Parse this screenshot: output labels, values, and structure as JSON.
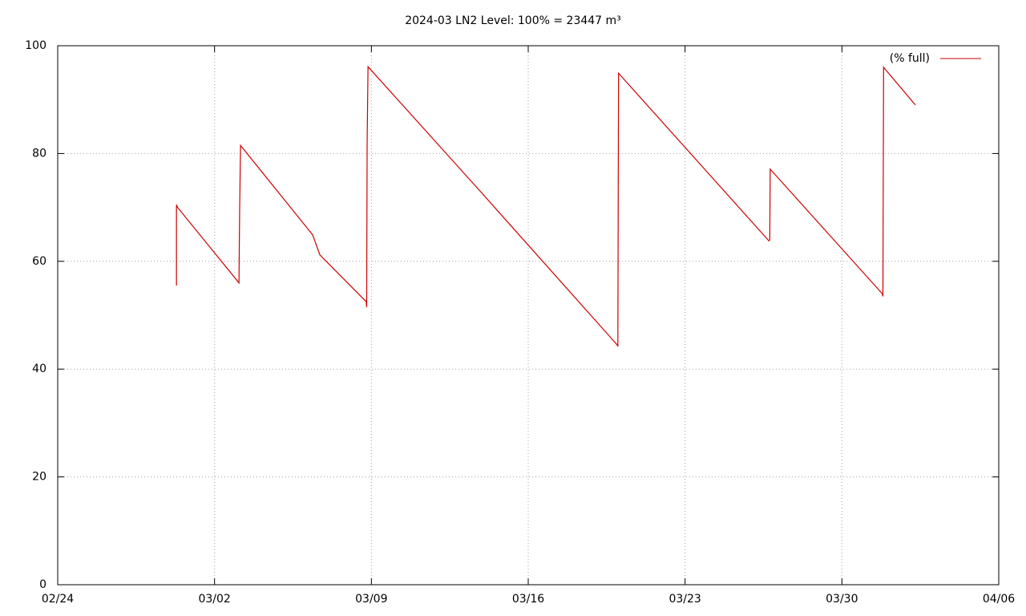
{
  "chart_data": {
    "type": "line",
    "title": "2024-03 LN2 Level: 100% = 23447 m³",
    "x": [
      5.3,
      5.3,
      5.35,
      8.09,
      8.12,
      8.16,
      11.38,
      11.7,
      13.77,
      13.79,
      13.81,
      13.85,
      18.9,
      24.97,
      25.0,
      25.03,
      31.74,
      31.78,
      31.8,
      36.8,
      36.83,
      36.86,
      38.28
    ],
    "series": [
      {
        "name": "(% full)",
        "color": "#cc0000",
        "values": [
          55.5,
          70.5,
          70,
          56,
          69.5,
          81.5,
          64.9,
          61.2,
          52.5,
          51.5,
          82,
          96.1,
          72.8,
          44.5,
          44.2,
          94.9,
          63.8,
          64,
          77.1,
          54,
          53.5,
          96,
          89
        ]
      }
    ],
    "xlim": [
      0,
      42
    ],
    "xticks": [
      {
        "value": 0,
        "label": "02/24"
      },
      {
        "value": 7,
        "label": "03/02"
      },
      {
        "value": 14,
        "label": "03/09"
      },
      {
        "value": 21,
        "label": "03/16"
      },
      {
        "value": 28,
        "label": "03/23"
      },
      {
        "value": 35,
        "label": "03/30"
      },
      {
        "value": 42,
        "label": "04/06"
      }
    ],
    "ylim": [
      0,
      100
    ],
    "yticks": [
      0,
      20,
      40,
      60,
      80,
      100
    ],
    "grid": true,
    "legend": "top-right"
  }
}
